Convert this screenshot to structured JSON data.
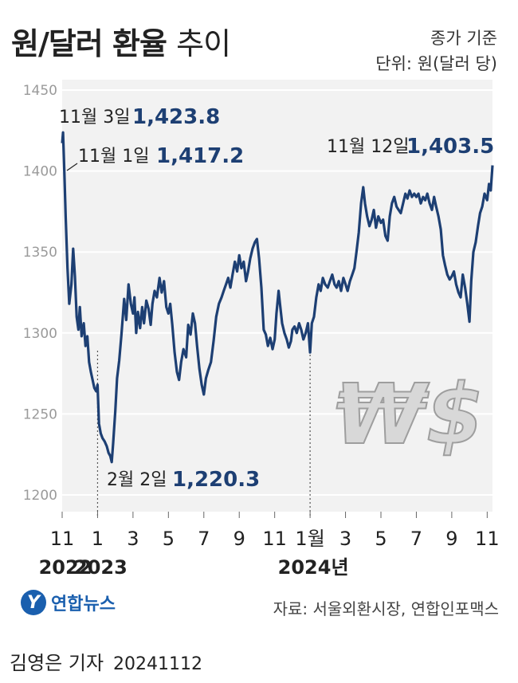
{
  "title": {
    "bold": "원/달러 환율",
    "light": "추이"
  },
  "notes": {
    "basis": "종가 기준",
    "unit": "단위: 원(달러 당)"
  },
  "source": "자료: 서울외환시장, 연합인포맥스",
  "logo": {
    "mark": "Y",
    "text": "연합뉴스"
  },
  "byline": {
    "name": "김영은 기자",
    "date": "20241112"
  },
  "chart_data": {
    "type": "line",
    "ylim": [
      1190,
      1450
    ],
    "yticks": [
      1200,
      1250,
      1300,
      1350,
      1400,
      1450
    ],
    "grid": true,
    "xticks": [
      {
        "i": 0,
        "month": "11",
        "year": "2022"
      },
      {
        "i": 2,
        "month": "1",
        "year": "2023"
      },
      {
        "i": 4,
        "month": "3",
        "year": ""
      },
      {
        "i": 6,
        "month": "5",
        "year": ""
      },
      {
        "i": 8,
        "month": "7",
        "year": ""
      },
      {
        "i": 10,
        "month": "9",
        "year": ""
      },
      {
        "i": 12,
        "month": "11",
        "year": ""
      },
      {
        "i": 14,
        "month": "1월",
        "year": "2024년"
      },
      {
        "i": 16,
        "month": "3",
        "year": ""
      },
      {
        "i": 18,
        "month": "5",
        "year": ""
      },
      {
        "i": 20,
        "month": "7",
        "year": ""
      },
      {
        "i": 22,
        "month": "9",
        "year": ""
      },
      {
        "i": 24,
        "month": "11",
        "year": ""
      }
    ],
    "year_dividers": [
      2,
      14
    ],
    "series": [
      {
        "color": "#1d3f73",
        "points": [
          [
            0.0,
            1417.2
          ],
          [
            0.05,
            1423.8
          ],
          [
            0.12,
            1400
          ],
          [
            0.2,
            1372
          ],
          [
            0.3,
            1340
          ],
          [
            0.4,
            1318
          ],
          [
            0.52,
            1330
          ],
          [
            0.62,
            1352
          ],
          [
            0.72,
            1335
          ],
          [
            0.82,
            1310
          ],
          [
            0.92,
            1302
          ],
          [
            1.0,
            1316
          ],
          [
            1.1,
            1298
          ],
          [
            1.22,
            1306
          ],
          [
            1.32,
            1292
          ],
          [
            1.42,
            1298
          ],
          [
            1.52,
            1282
          ],
          [
            1.62,
            1276
          ],
          [
            1.72,
            1271
          ],
          [
            1.82,
            1266
          ],
          [
            1.92,
            1264
          ],
          [
            2.0,
            1268
          ],
          [
            2.08,
            1244
          ],
          [
            2.18,
            1238
          ],
          [
            2.28,
            1235
          ],
          [
            2.4,
            1233
          ],
          [
            2.52,
            1230
          ],
          [
            2.62,
            1226
          ],
          [
            2.72,
            1224
          ],
          [
            2.8,
            1220.3
          ],
          [
            2.88,
            1232
          ],
          [
            3.0,
            1252
          ],
          [
            3.1,
            1272
          ],
          [
            3.22,
            1283
          ],
          [
            3.35,
            1299
          ],
          [
            3.5,
            1321
          ],
          [
            3.62,
            1308
          ],
          [
            3.75,
            1330
          ],
          [
            3.88,
            1318
          ],
          [
            4.0,
            1312
          ],
          [
            4.08,
            1322
          ],
          [
            4.18,
            1300
          ],
          [
            4.28,
            1313
          ],
          [
            4.4,
            1303
          ],
          [
            4.52,
            1316
          ],
          [
            4.62,
            1306
          ],
          [
            4.75,
            1320
          ],
          [
            4.88,
            1315
          ],
          [
            5.0,
            1305
          ],
          [
            5.1,
            1318
          ],
          [
            5.22,
            1326
          ],
          [
            5.35,
            1322
          ],
          [
            5.5,
            1334
          ],
          [
            5.62,
            1325
          ],
          [
            5.75,
            1332
          ],
          [
            5.88,
            1316
          ],
          [
            6.0,
            1312
          ],
          [
            6.1,
            1318
          ],
          [
            6.22,
            1305
          ],
          [
            6.35,
            1288
          ],
          [
            6.48,
            1276
          ],
          [
            6.6,
            1271
          ],
          [
            6.72,
            1282
          ],
          [
            6.85,
            1290
          ],
          [
            7.0,
            1285
          ],
          [
            7.12,
            1305
          ],
          [
            7.25,
            1299
          ],
          [
            7.38,
            1312
          ],
          [
            7.5,
            1306
          ],
          [
            7.62,
            1292
          ],
          [
            7.75,
            1278
          ],
          [
            7.88,
            1268
          ],
          [
            8.0,
            1262
          ],
          [
            8.12,
            1272
          ],
          [
            8.25,
            1277
          ],
          [
            8.4,
            1282
          ],
          [
            8.55,
            1295
          ],
          [
            8.7,
            1310
          ],
          [
            8.85,
            1318
          ],
          [
            9.0,
            1322
          ],
          [
            9.12,
            1326
          ],
          [
            9.25,
            1330
          ],
          [
            9.38,
            1334
          ],
          [
            9.5,
            1328
          ],
          [
            9.62,
            1336
          ],
          [
            9.75,
            1344
          ],
          [
            9.88,
            1338
          ],
          [
            10.0,
            1348
          ],
          [
            10.12,
            1340
          ],
          [
            10.25,
            1344
          ],
          [
            10.38,
            1332
          ],
          [
            10.5,
            1338
          ],
          [
            10.62,
            1346
          ],
          [
            10.75,
            1352
          ],
          [
            10.88,
            1356
          ],
          [
            11.0,
            1358
          ],
          [
            11.12,
            1346
          ],
          [
            11.25,
            1328
          ],
          [
            11.38,
            1302
          ],
          [
            11.5,
            1299
          ],
          [
            11.62,
            1292
          ],
          [
            11.75,
            1297
          ],
          [
            11.88,
            1290
          ],
          [
            12.0,
            1296
          ],
          [
            12.1,
            1312
          ],
          [
            12.22,
            1326
          ],
          [
            12.3,
            1318
          ],
          [
            12.42,
            1306
          ],
          [
            12.55,
            1300
          ],
          [
            12.68,
            1296
          ],
          [
            12.8,
            1291
          ],
          [
            12.92,
            1295
          ],
          [
            13.0,
            1302
          ],
          [
            13.12,
            1304
          ],
          [
            13.25,
            1300
          ],
          [
            13.38,
            1306
          ],
          [
            13.5,
            1302
          ],
          [
            13.62,
            1296
          ],
          [
            13.75,
            1300
          ],
          [
            13.88,
            1306
          ],
          [
            14.0,
            1288
          ],
          [
            14.1,
            1306
          ],
          [
            14.22,
            1310
          ],
          [
            14.35,
            1322
          ],
          [
            14.48,
            1330
          ],
          [
            14.6,
            1326
          ],
          [
            14.72,
            1334
          ],
          [
            14.85,
            1330
          ],
          [
            15.0,
            1328
          ],
          [
            15.12,
            1332
          ],
          [
            15.25,
            1336
          ],
          [
            15.38,
            1330
          ],
          [
            15.5,
            1328
          ],
          [
            15.62,
            1332
          ],
          [
            15.75,
            1326
          ],
          [
            15.88,
            1334
          ],
          [
            16.0,
            1330
          ],
          [
            16.12,
            1326
          ],
          [
            16.25,
            1332
          ],
          [
            16.38,
            1336
          ],
          [
            16.5,
            1340
          ],
          [
            16.62,
            1350
          ],
          [
            16.75,
            1362
          ],
          [
            16.88,
            1380
          ],
          [
            17.0,
            1390
          ],
          [
            17.1,
            1380
          ],
          [
            17.22,
            1372
          ],
          [
            17.35,
            1366
          ],
          [
            17.48,
            1370
          ],
          [
            17.6,
            1376
          ],
          [
            17.72,
            1365
          ],
          [
            17.85,
            1372
          ],
          [
            18.0,
            1368
          ],
          [
            18.12,
            1370
          ],
          [
            18.25,
            1360
          ],
          [
            18.38,
            1357
          ],
          [
            18.5,
            1372
          ],
          [
            18.62,
            1380
          ],
          [
            18.75,
            1384
          ],
          [
            18.88,
            1378
          ],
          [
            19.0,
            1376
          ],
          [
            19.12,
            1374
          ],
          [
            19.25,
            1380
          ],
          [
            19.38,
            1386
          ],
          [
            19.5,
            1383
          ],
          [
            19.62,
            1388
          ],
          [
            19.75,
            1384
          ],
          [
            19.88,
            1386
          ],
          [
            20.0,
            1384
          ],
          [
            20.12,
            1386
          ],
          [
            20.25,
            1380
          ],
          [
            20.38,
            1384
          ],
          [
            20.5,
            1382
          ],
          [
            20.62,
            1386
          ],
          [
            20.75,
            1380
          ],
          [
            20.88,
            1376
          ],
          [
            21.0,
            1384
          ],
          [
            21.12,
            1378
          ],
          [
            21.25,
            1372
          ],
          [
            21.38,
            1364
          ],
          [
            21.5,
            1348
          ],
          [
            21.62,
            1342
          ],
          [
            21.75,
            1336
          ],
          [
            21.88,
            1333
          ],
          [
            22.0,
            1335
          ],
          [
            22.12,
            1338
          ],
          [
            22.25,
            1330
          ],
          [
            22.38,
            1325
          ],
          [
            22.5,
            1322
          ],
          [
            22.62,
            1336
          ],
          [
            22.75,
            1328
          ],
          [
            22.88,
            1318
          ],
          [
            23.0,
            1307
          ],
          [
            23.1,
            1332
          ],
          [
            23.22,
            1350
          ],
          [
            23.35,
            1356
          ],
          [
            23.48,
            1366
          ],
          [
            23.6,
            1374
          ],
          [
            23.72,
            1378
          ],
          [
            23.85,
            1386
          ],
          [
            24.0,
            1382
          ],
          [
            24.1,
            1392
          ],
          [
            24.2,
            1388
          ],
          [
            24.3,
            1403.5
          ]
        ]
      }
    ],
    "annotations": [
      {
        "text": "11월 3일",
        "value": "1,423.8"
      },
      {
        "text": "11월 1일",
        "value": "1,417.2"
      },
      {
        "text": "2월 2일",
        "value": "1,220.3"
      },
      {
        "text": "11월 12일",
        "value": "1,403.5"
      }
    ]
  }
}
